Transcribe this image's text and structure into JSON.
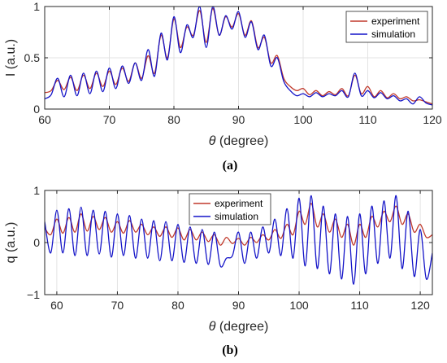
{
  "figure": {
    "panel_a_label": "(a)",
    "panel_b_label": "(b)"
  },
  "chart_data": [
    {
      "type": "line",
      "panel": "(a)",
      "xlabel_symbol": "θ",
      "xlabel_text": " (degree)",
      "ylabel": "I (a.u.)",
      "xlim": [
        60,
        120
      ],
      "ylim": [
        0,
        1
      ],
      "xticks": [
        60,
        70,
        80,
        90,
        100,
        110,
        120
      ],
      "yticks": [
        0,
        0.5,
        1
      ],
      "ytick_labels": [
        "0",
        "0.5",
        "1"
      ],
      "grid": true,
      "legend_position": "top-right",
      "series": [
        {
          "name": "experiment",
          "color": "#c0392b",
          "x": [
            60,
            61,
            62,
            63,
            64,
            65,
            66,
            67,
            68,
            69,
            70,
            71,
            72,
            73,
            74,
            75,
            76,
            77,
            78,
            79,
            80,
            81,
            82,
            83,
            84,
            85,
            86,
            87,
            88,
            89,
            90,
            91,
            92,
            93,
            94,
            95,
            96,
            97,
            98,
            99,
            100,
            101,
            102,
            103,
            104,
            105,
            106,
            107,
            108,
            109,
            110,
            111,
            112,
            113,
            114,
            115,
            116,
            117,
            118,
            119,
            120
          ],
          "values": [
            0.16,
            0.18,
            0.28,
            0.19,
            0.31,
            0.18,
            0.33,
            0.2,
            0.35,
            0.22,
            0.37,
            0.24,
            0.4,
            0.27,
            0.45,
            0.3,
            0.52,
            0.35,
            0.72,
            0.5,
            0.88,
            0.6,
            0.8,
            0.72,
            0.96,
            0.65,
            0.98,
            0.72,
            0.9,
            0.8,
            0.93,
            0.72,
            0.86,
            0.6,
            0.7,
            0.45,
            0.52,
            0.3,
            0.22,
            0.18,
            0.2,
            0.14,
            0.18,
            0.13,
            0.17,
            0.14,
            0.2,
            0.13,
            0.33,
            0.15,
            0.22,
            0.12,
            0.18,
            0.11,
            0.15,
            0.1,
            0.12,
            0.08,
            0.09,
            0.07,
            0.05
          ]
        },
        {
          "name": "simulation",
          "color": "#1414c8",
          "x": [
            60,
            61,
            62,
            63,
            64,
            65,
            66,
            67,
            68,
            69,
            70,
            71,
            72,
            73,
            74,
            75,
            76,
            77,
            78,
            79,
            80,
            81,
            82,
            83,
            84,
            85,
            86,
            87,
            88,
            89,
            90,
            91,
            92,
            93,
            94,
            95,
            96,
            97,
            98,
            99,
            100,
            101,
            102,
            103,
            104,
            105,
            106,
            107,
            108,
            109,
            110,
            111,
            112,
            113,
            114,
            115,
            116,
            117,
            118,
            119,
            120
          ],
          "values": [
            0.1,
            0.14,
            0.3,
            0.12,
            0.33,
            0.13,
            0.35,
            0.15,
            0.37,
            0.17,
            0.4,
            0.2,
            0.42,
            0.25,
            0.45,
            0.28,
            0.58,
            0.32,
            0.74,
            0.48,
            0.9,
            0.55,
            0.82,
            0.7,
            1.0,
            0.6,
            1.0,
            0.72,
            0.91,
            0.78,
            0.95,
            0.7,
            0.85,
            0.58,
            0.72,
            0.42,
            0.5,
            0.27,
            0.18,
            0.13,
            0.15,
            0.12,
            0.16,
            0.12,
            0.15,
            0.13,
            0.18,
            0.12,
            0.35,
            0.13,
            0.18,
            0.11,
            0.16,
            0.1,
            0.13,
            0.08,
            0.1,
            0.05,
            0.12,
            0.06,
            0.04
          ]
        }
      ]
    },
    {
      "type": "line",
      "panel": "(b)",
      "xlabel_symbol": "θ",
      "xlabel_text": " (degree)",
      "ylabel": "q (a.u.)",
      "xlim": [
        58,
        122
      ],
      "ylim": [
        -1,
        1
      ],
      "xticks": [
        60,
        70,
        80,
        90,
        100,
        110,
        120
      ],
      "yticks": [
        -1,
        0,
        1
      ],
      "ytick_labels": [
        "−1",
        "0",
        "1"
      ],
      "grid": true,
      "legend_position": "top-left",
      "series": [
        {
          "name": "experiment",
          "color": "#c0392b",
          "x": [
            58,
            59,
            60,
            61,
            62,
            63,
            64,
            65,
            66,
            67,
            68,
            69,
            70,
            71,
            72,
            73,
            74,
            75,
            76,
            77,
            78,
            79,
            80,
            81,
            82,
            83,
            84,
            85,
            86,
            87,
            88,
            89,
            90,
            91,
            92,
            93,
            94,
            95,
            96,
            97,
            98,
            99,
            100,
            101,
            102,
            103,
            104,
            105,
            106,
            107,
            108,
            109,
            110,
            111,
            112,
            113,
            114,
            115,
            116,
            117,
            118,
            119,
            120,
            121,
            122
          ],
          "values": [
            0.28,
            0.15,
            0.45,
            0.18,
            0.48,
            0.2,
            0.55,
            0.22,
            0.5,
            0.25,
            0.48,
            0.2,
            0.4,
            0.18,
            0.42,
            0.2,
            0.35,
            0.15,
            0.3,
            0.12,
            0.3,
            0.1,
            0.28,
            0.05,
            0.25,
            0.05,
            0.2,
            0.02,
            0.15,
            -0.05,
            0.1,
            -0.02,
            0.08,
            -0.05,
            0.1,
            0.0,
            0.15,
            0.05,
            0.25,
            0.08,
            0.35,
            0.15,
            0.6,
            0.35,
            0.75,
            0.3,
            0.55,
            0.2,
            0.45,
            0.1,
            0.35,
            -0.05,
            0.35,
            0.1,
            0.5,
            0.3,
            0.6,
            0.4,
            0.7,
            0.35,
            0.55,
            0.2,
            0.35,
            0.1,
            0.15
          ]
        },
        {
          "name": "simulation",
          "color": "#1414c8",
          "x": [
            58,
            59,
            60,
            61,
            62,
            63,
            64,
            65,
            66,
            67,
            68,
            69,
            70,
            71,
            72,
            73,
            74,
            75,
            76,
            77,
            78,
            79,
            80,
            81,
            82,
            83,
            84,
            85,
            86,
            87,
            88,
            89,
            90,
            91,
            92,
            93,
            94,
            95,
            96,
            97,
            98,
            99,
            100,
            101,
            102,
            103,
            104,
            105,
            106,
            107,
            108,
            109,
            110,
            111,
            112,
            113,
            114,
            115,
            116,
            117,
            118,
            119,
            120,
            121,
            122
          ],
          "values": [
            0.4,
            -0.2,
            0.62,
            -0.2,
            0.65,
            -0.25,
            0.68,
            -0.25,
            0.62,
            -0.22,
            0.6,
            -0.28,
            0.55,
            -0.25,
            0.52,
            -0.3,
            0.45,
            -0.3,
            0.42,
            -0.35,
            0.4,
            -0.35,
            0.35,
            -0.38,
            0.3,
            -0.4,
            0.25,
            -0.42,
            0.2,
            -0.45,
            -0.3,
            -0.25,
            0.2,
            -0.4,
            0.2,
            -0.3,
            0.3,
            -0.2,
            0.45,
            -0.25,
            0.65,
            -0.3,
            0.85,
            -0.45,
            0.9,
            -0.5,
            0.7,
            -0.6,
            0.55,
            -0.7,
            0.5,
            -0.8,
            0.55,
            -0.6,
            0.7,
            -0.4,
            0.8,
            -0.3,
            0.9,
            -0.5,
            0.6,
            -0.65,
            0.25,
            -0.7,
            -0.2
          ]
        }
      ]
    }
  ]
}
